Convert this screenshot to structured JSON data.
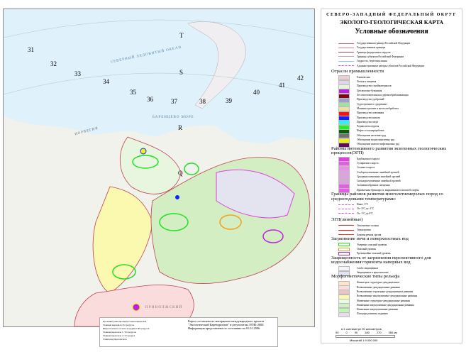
{
  "title": "СЕВЕРО-ЗАПАДНЫЙ ФЕДЕРАЛЬНЫЙ ОКРУГ",
  "subtitle": "ЭКОЛОГО-ГЕОЛОГИЧЕСКАЯ КАРТА",
  "legend_title": "Условные обозначения",
  "boundaries": [
    {
      "label": "Государственная граница Российской Федерации",
      "color": "#e05a6a"
    },
    {
      "label": "Государственные границы",
      "color": "#f07080"
    },
    {
      "label": "Границы федеральных округов",
      "color": "#b04050"
    },
    {
      "label": "Границы субъектов Российской Федерации",
      "color": "#d0a0b0"
    },
    {
      "label": "Гидросеть, береговая линия",
      "color": "#9cc8e8"
    },
    {
      "label": "Административные центры субъектов Российской Федерации",
      "marker": "САНКТ-ПЕТЕРБУРГ"
    }
  ],
  "industry_title": "Отрасли промышленности",
  "industry": [
    {
      "label": "Химическая",
      "color": "#e8d0d4"
    },
    {
      "label": "Легкая и пищевая",
      "color": "#dcd8e8"
    },
    {
      "label": "Производство стройматериалов",
      "color": "#e4f4e0"
    },
    {
      "label": "Целлюлозно-бумажная",
      "color": "#c020e0"
    },
    {
      "label": "Лесозаготовительная и деревообрабатывающая",
      "color": "#7a0a10"
    },
    {
      "label": "Производство удобрений",
      "color": "#a0a0d0"
    },
    {
      "label": "Судостроение и судоремонт",
      "color": "#a0e0a0"
    },
    {
      "label": "Машиностроение и металлообработка",
      "color": "#f0e0a0"
    },
    {
      "label": "Производство алюминия",
      "color": "#ff1010"
    },
    {
      "label": "Производство никеля",
      "color": "#1020ff"
    },
    {
      "label": "Производство меди",
      "color": "#30f0f0"
    },
    {
      "label": "Черная металлургия",
      "color": "#20f020"
    },
    {
      "label": "Нефте и газопереработка",
      "color": "#0a5a10"
    },
    {
      "label": "Обогащение железных руд",
      "color": "#707070"
    },
    {
      "label": "Обогащение медно-никелевых руд",
      "color": "#f0f010"
    },
    {
      "label": "Обогащение апатито-нефелиновых руд",
      "color": "#600a60"
    }
  ],
  "egp_title": "Районы интенсивного развития экзогенных геологических процессов(ЭГП)",
  "egp": [
    {
      "label": "Карбонатного карста",
      "color": "#e040e0"
    },
    {
      "label": "Сульфатного карста",
      "color": "#e060e0"
    },
    {
      "label": "Соляного карста",
      "color": "#e890e8"
    },
    {
      "label": "Слаборасчлененные линейной эрозией",
      "color": "#e0a0e0"
    },
    {
      "label": "Среднерасчлененные линейной эрозией",
      "color": "#e0a0e0"
    },
    {
      "label": "Сильнорасчлененные линейной эрозией",
      "color": "#e0a0e0"
    },
    {
      "label": "Сплывинообразные смещения",
      "color": "#e060e0"
    },
    {
      "label": "Проявления термокарста, выраженные в масштабе карты",
      "color": "#e060e0"
    }
  ],
  "permafrost_title": "Границы районов развития многолетнемерзлых пород со среднегодовыми температурами:",
  "permafrost": [
    {
      "label": "Ниже -3°С"
    },
    {
      "label": "От -3°С до -1°С"
    },
    {
      "label": "От -1°С до 0°С"
    }
  ],
  "linear_title": "ЭГП(линейные)",
  "linear": [
    {
      "label": "Оползневые склоны",
      "color": "#ff2020"
    },
    {
      "label": "Термоэрозия",
      "color": "#e02020"
    },
    {
      "label": "Боковая речная эрозия",
      "color": "#e04040"
    }
  ],
  "pollution_title": "Загрязнение почв и поверхностных вод",
  "pollution": [
    {
      "label": "Умеренно опасный уровень",
      "color": "#20e020"
    },
    {
      "label": "Опасный уровень",
      "color": "#f0a020"
    },
    {
      "label": "Чрезвычайно опасный уровень",
      "color": "#c020e0"
    }
  ],
  "protection_title": "Защищенность от загрязнения перспективного для водоснабжения горизонта напорных вод",
  "protection": [
    {
      "label": "Слабо защищенные",
      "color": "#f4f4fa"
    },
    {
      "label": "Защищенные в криолитозоне",
      "color": "#e4e4f0"
    }
  ],
  "relief_title": "Морфогенетические типы рельефа",
  "relief": [
    {
      "label": "Низкогорье структурно-денудационное",
      "color": "#fbe6cc"
    },
    {
      "label": "Возвышенные денудационные равнины",
      "color": "#fbdcdc"
    },
    {
      "label": "Возвышенные структурно-денудационные равнины",
      "color": "#e8c4c4"
    },
    {
      "label": "Возвышенные аккумулятивно-денудационные равнины",
      "color": "#fbf8b0"
    },
    {
      "label": "Низменные структурно-денудационные равнины",
      "color": "#e8fae0"
    },
    {
      "label": "Низменные аккумулятивно-денудационные равнины",
      "color": "#d4eec4"
    },
    {
      "label": "Низменные аккумулятивные равнины",
      "color": "#c4f4b8"
    },
    {
      "label": "Площади развития ледников",
      "color": "#e8dcec"
    }
  ],
  "scale": {
    "caption": "в 1 сантиметре 90 километров",
    "ticks": [
      "90",
      "0",
      "90",
      "180",
      "270",
      "360 км"
    ],
    "label": "Масштаб 1:9 000 000"
  },
  "note": {
    "left": [
      "Проекция равнопромежуточная коническая",
      "Главный меридиан 45 градусов",
      "Широта начала отсчета координат 60 градусов",
      "Главная параллель 1: 56 градусов",
      "Главная параллель 2: 72 градуса",
      "Эллипсоид Красовского"
    ],
    "right": "Карта составлена по материалам международного проекта \"Экологический Баренцрегион\" и результатам ЭГИБ-2000. Информация представлена по состоянию на 01.01.2006"
  },
  "map": {
    "grid_numbers": [
      "31",
      "32",
      "33",
      "34",
      "35",
      "36",
      "37",
      "38",
      "39",
      "40",
      "41",
      "42"
    ],
    "grid_letters": [
      "T",
      "S",
      "R",
      "Q"
    ],
    "labels": {
      "sea": "БАРЕНЦЕВО МОРЕ",
      "ocean": "СЕВЕРНЫЙ ЛЕДОВИТЫЙ ОКЕАН",
      "norway": "НОРВЕГИЯ",
      "district": "П Р И В О Л Ж С К И Й"
    },
    "colors": {
      "sea": "#dff1fb",
      "land": "#f2f2ec",
      "border": "#c04050"
    }
  }
}
